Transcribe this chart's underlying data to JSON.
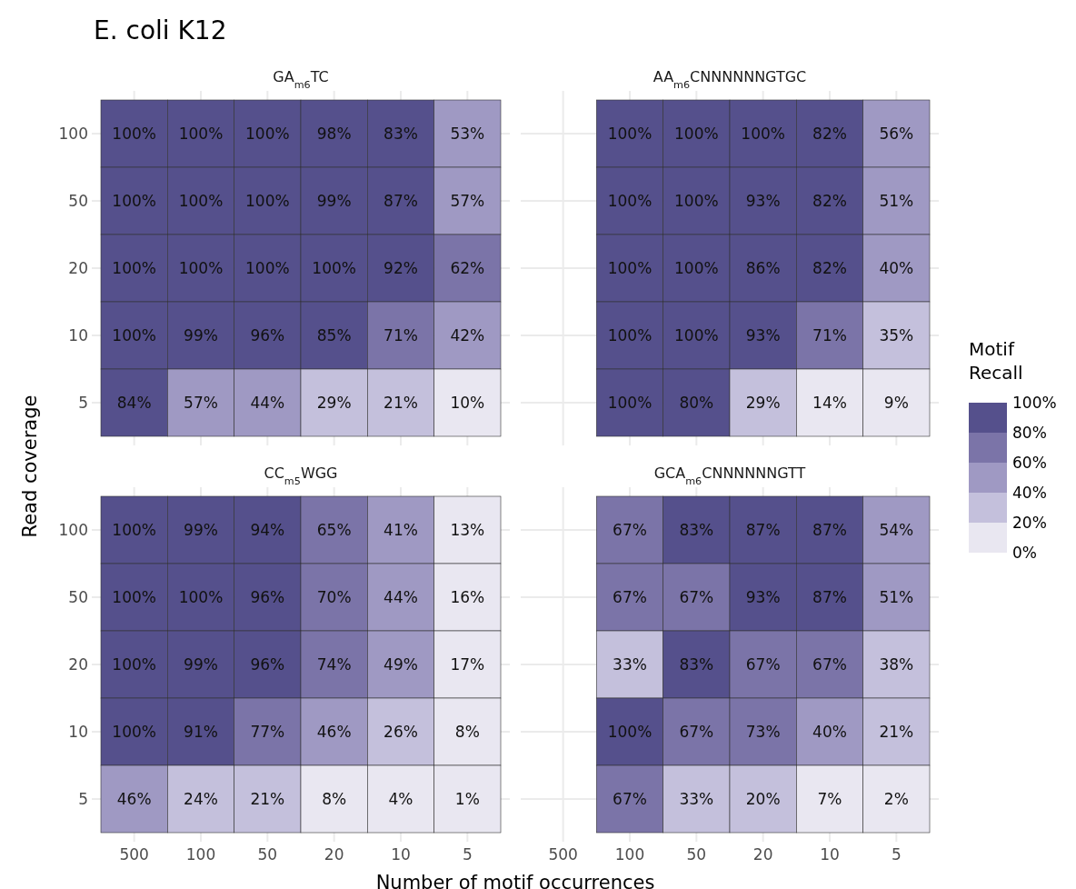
{
  "chart_data": [
    {
      "type": "heatmap",
      "title": "E. coli K12",
      "subtitle": "GA$_{m6}$TC",
      "ylabel": "Read coverage",
      "tick_labels": "y",
      "grid": true,
      "categories": [
        "500",
        "100",
        "50",
        "20",
        "10",
        "5"
      ],
      "y_categories": [
        "100",
        "50",
        "20",
        "10",
        "5"
      ],
      "cells": [
        [
          100,
          100,
          100,
          98,
          83,
          53
        ],
        [
          100,
          100,
          100,
          99,
          87,
          57
        ],
        [
          100,
          100,
          100,
          100,
          92,
          62
        ],
        [
          100,
          99,
          96,
          85,
          71,
          42
        ],
        [
          84,
          57,
          44,
          29,
          21,
          10
        ]
      ],
      "cell_labels": [
        [
          "100%",
          "100%",
          "100%",
          "98%",
          "83%",
          "53%"
        ],
        [
          "100%",
          "100%",
          "100%",
          "99%",
          "87%",
          "57%"
        ],
        [
          "100%",
          "100%",
          "100%",
          "100%",
          "92%",
          "62%"
        ],
        [
          "100%",
          "99%",
          "96%",
          "85%",
          "71%",
          "42%"
        ],
        [
          "84%",
          "57%",
          "44%",
          "29%",
          "21%",
          "10%"
        ]
      ]
    },
    {
      "type": "heatmap",
      "subtitle": "AA$_{m6}$CNNNNNNGTGC",
      "tick_labels": false,
      "grid": true,
      "categories": [
        "500",
        "100",
        "50",
        "20",
        "10",
        "5"
      ],
      "y_categories": [
        "100",
        "50",
        "20",
        "10",
        "5"
      ],
      "cells": [
        [
          null,
          100,
          100,
          100,
          82,
          56
        ],
        [
          null,
          100,
          100,
          93,
          82,
          51
        ],
        [
          null,
          100,
          100,
          86,
          82,
          40
        ],
        [
          null,
          100,
          100,
          93,
          71,
          35
        ],
        [
          null,
          100,
          80,
          29,
          14,
          9
        ]
      ],
      "cell_labels": [
        [
          null,
          "100%",
          "100%",
          "100%",
          "82%",
          "56%"
        ],
        [
          null,
          "100%",
          "100%",
          "93%",
          "82%",
          "51%"
        ],
        [
          null,
          "100%",
          "100%",
          "86%",
          "82%",
          "40%"
        ],
        [
          null,
          "100%",
          "100%",
          "93%",
          "71%",
          "35%"
        ],
        [
          null,
          "100%",
          "80%",
          "29%",
          "14%",
          "9%"
        ]
      ]
    },
    {
      "type": "heatmap",
      "subtitle": "CC$_{m5}$WGG",
      "xlabel": "Number of motif occurrences",
      "grid": true,
      "categories": [
        "500",
        "100",
        "50",
        "20",
        "10",
        "5"
      ],
      "y_categories": [
        "100",
        "50",
        "20",
        "10",
        "5"
      ],
      "cells": [
        [
          100,
          99,
          94,
          65,
          41,
          13
        ],
        [
          100,
          100,
          96,
          70,
          44,
          16
        ],
        [
          100,
          99,
          96,
          74,
          49,
          17
        ],
        [
          100,
          91,
          77,
          46,
          26,
          8
        ],
        [
          46,
          24,
          21,
          8,
          4,
          1
        ]
      ],
      "cell_labels": [
        [
          "100%",
          "99%",
          "94%",
          "65%",
          "41%",
          "13%"
        ],
        [
          "100%",
          "100%",
          "96%",
          "70%",
          "44%",
          "16%"
        ],
        [
          "100%",
          "99%",
          "96%",
          "74%",
          "49%",
          "17%"
        ],
        [
          "100%",
          "91%",
          "77%",
          "46%",
          "26%",
          "8%"
        ],
        [
          "46%",
          "24%",
          "21%",
          "8%",
          "4%",
          "1%"
        ]
      ]
    },
    {
      "type": "heatmap",
      "subtitle": "GCA$_{m6}$CNNNNNNGTT",
      "tick_labels": "x",
      "grid": true,
      "categories": [
        "500",
        "100",
        "50",
        "20",
        "10",
        "5"
      ],
      "y_categories": [
        "100",
        "50",
        "20",
        "10",
        "5"
      ],
      "cells": [
        [
          null,
          67,
          83,
          87,
          87,
          54
        ],
        [
          null,
          67,
          67,
          93,
          87,
          51
        ],
        [
          null,
          33,
          83,
          67,
          67,
          38
        ],
        [
          null,
          100,
          67,
          73,
          40,
          21
        ],
        [
          null,
          67,
          33,
          20,
          7,
          2
        ]
      ],
      "cell_labels": [
        [
          null,
          "67%",
          "83%",
          "87%",
          "87%",
          "54%"
        ],
        [
          null,
          "67%",
          "67%",
          "93%",
          "87%",
          "51%"
        ],
        [
          null,
          "33%",
          "83%",
          "67%",
          "67%",
          "38%"
        ],
        [
          null,
          "100%",
          "67%",
          "73%",
          "40%",
          "21%"
        ],
        [
          null,
          "67%",
          "33%",
          "20%",
          "7%",
          "2%"
        ]
      ],
      "clabel": "Motif Recall",
      "clim": [
        0,
        100
      ],
      "cticks": [
        {
          "value": 0,
          "label": "0%"
        },
        {
          "value": 20,
          "label": "20%"
        },
        {
          "value": 40,
          "label": "40%"
        },
        {
          "value": 60,
          "label": "60%"
        },
        {
          "value": 80,
          "label": "80%"
        },
        {
          "value": 100,
          "label": "100%"
        }
      ],
      "colors": [
        "#e9e7f1",
        "#c4c0dc",
        "#9f99c3",
        "#7b74a8",
        "#55508c"
      ]
    }
  ]
}
